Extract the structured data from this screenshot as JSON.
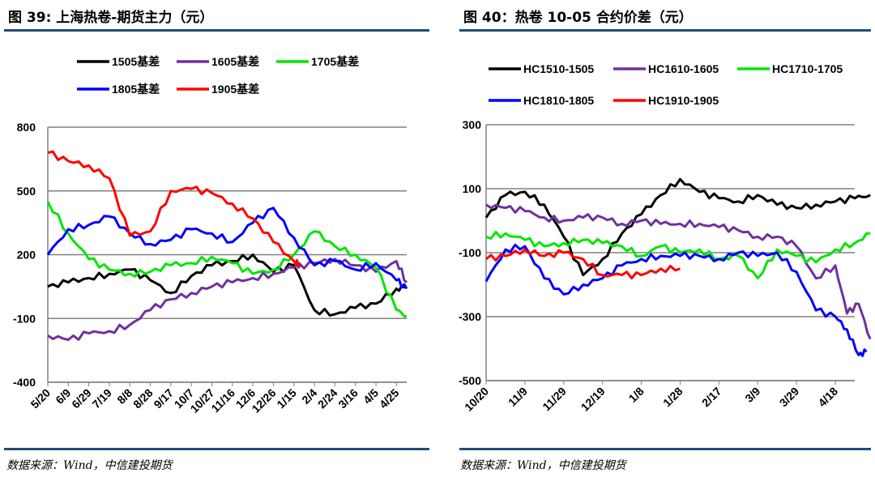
{
  "left": {
    "title": "图 39: 上海热卷-期货主力（元）",
    "source": "数据来源：Wind，中信建投期货"
  },
  "right": {
    "title": "图 40：热卷 10-05 合约价差（元）",
    "source": "数据来源：Wind，中信建投期货"
  },
  "colors": {
    "black": "#000000",
    "purple": "#7030a0",
    "green": "#00e600",
    "blue": "#0000ff",
    "red": "#ff0000",
    "rule": "#1f4e79"
  },
  "chart_data": [
    {
      "type": "line",
      "title": "",
      "xlabel": "",
      "ylabel": "",
      "ylim": [
        -400,
        800
      ],
      "yticks": [
        "800",
        "500",
        "200",
        "-100",
        "-400"
      ],
      "grid": true,
      "legend": "top",
      "categories": [
        "5/20",
        "6/9",
        "6/29",
        "7/19",
        "8/8",
        "8/28",
        "9/17",
        "10/7",
        "10/27",
        "11/16",
        "12/6",
        "12/26",
        "1/15",
        "2/4",
        "2/24",
        "3/16",
        "4/5",
        "4/25"
      ],
      "series": [
        {
          "name": "1505基差",
          "color": "#000000",
          "x": [
            0,
            1,
            2,
            3,
            4,
            5,
            6,
            7,
            8,
            9,
            10,
            11,
            12,
            13,
            14,
            15,
            16,
            17,
            17.5
          ],
          "values": [
            50,
            70,
            90,
            110,
            130,
            80,
            20,
            100,
            150,
            170,
            200,
            120,
            150,
            -60,
            -80,
            -50,
            -30,
            40,
            50
          ]
        },
        {
          "name": "1605基差",
          "color": "#7030a0",
          "x": [
            0,
            1,
            2,
            3,
            4,
            5,
            6,
            7,
            8,
            9,
            10,
            11,
            12,
            13,
            14,
            15,
            16,
            17,
            17.5
          ],
          "values": [
            -180,
            -200,
            -170,
            -160,
            -130,
            -60,
            -10,
            20,
            50,
            70,
            90,
            110,
            140,
            160,
            180,
            150,
            120,
            170,
            70
          ]
        },
        {
          "name": "1705基差",
          "color": "#00e600",
          "x": [
            0,
            1,
            2,
            3,
            4,
            5,
            6,
            7,
            8,
            9,
            10,
            11,
            12,
            13,
            14,
            15,
            16,
            17,
            17.5
          ],
          "values": [
            450,
            300,
            180,
            130,
            110,
            120,
            150,
            160,
            190,
            160,
            110,
            130,
            200,
            310,
            240,
            200,
            140,
            -60,
            -90
          ]
        },
        {
          "name": "1805基差",
          "color": "#0000ff",
          "x": [
            0,
            1,
            2,
            3,
            4,
            5,
            6,
            7,
            8,
            9,
            10,
            11,
            12,
            13,
            14,
            15,
            16,
            17,
            17.5
          ],
          "values": [
            200,
            320,
            340,
            380,
            300,
            250,
            270,
            320,
            300,
            260,
            350,
            420,
            280,
            150,
            170,
            130,
            160,
            80,
            40
          ]
        },
        {
          "name": "1905基差",
          "color": "#ff0000",
          "x": [
            0,
            1,
            2,
            3,
            4,
            5,
            6,
            7,
            8,
            9,
            10,
            11,
            12,
            12.3
          ],
          "values": [
            680,
            640,
            620,
            560,
            290,
            310,
            500,
            510,
            490,
            440,
            370,
            260,
            170,
            150
          ]
        }
      ]
    },
    {
      "type": "line",
      "title": "",
      "xlabel": "",
      "ylabel": "",
      "ylim": [
        -500,
        300
      ],
      "yticks": [
        "300",
        "100",
        "-100",
        "-300",
        "-500"
      ],
      "grid": true,
      "legend": "top",
      "categories": [
        "10/20",
        "11/9",
        "11/29",
        "12/19",
        "1/8",
        "1/28",
        "2/17",
        "3/9",
        "3/29",
        "4/18"
      ],
      "series": [
        {
          "name": "HC1510-1505",
          "color": "#000000",
          "x": [
            0,
            0.5,
            1,
            1.5,
            2,
            2.5,
            3,
            3.5,
            4,
            4.5,
            5,
            5.5,
            6,
            6.5,
            7,
            7.5,
            8,
            8.5,
            9,
            9.5,
            9.9
          ],
          "values": [
            10,
            80,
            90,
            50,
            -50,
            -170,
            -120,
            -40,
            20,
            80,
            130,
            90,
            70,
            60,
            80,
            50,
            40,
            50,
            60,
            70,
            80
          ]
        },
        {
          "name": "HC1610-1605",
          "color": "#7030a0",
          "x": [
            0,
            0.5,
            1,
            1.5,
            2,
            2.5,
            3,
            3.5,
            4,
            4.5,
            5,
            5.5,
            6,
            6.5,
            7,
            7.5,
            8,
            8.5,
            9,
            9.3,
            9.6,
            9.9
          ],
          "values": [
            50,
            40,
            30,
            10,
            0,
            10,
            10,
            -10,
            0,
            -10,
            -10,
            -10,
            -20,
            -30,
            -50,
            -50,
            -80,
            -180,
            -140,
            -290,
            -260,
            -370
          ]
        },
        {
          "name": "HC1710-1705",
          "color": "#00e600",
          "x": [
            0,
            0.5,
            1,
            1.5,
            2,
            2.5,
            3,
            3.5,
            4,
            4.5,
            5,
            5.5,
            6,
            6.5,
            7,
            7.5,
            8,
            8.5,
            9,
            9.5,
            9.9
          ],
          "values": [
            -50,
            -40,
            -60,
            -80,
            -70,
            -60,
            -70,
            -80,
            -110,
            -80,
            -100,
            -90,
            -120,
            -110,
            -180,
            -90,
            -110,
            -130,
            -90,
            -70,
            -40
          ]
        },
        {
          "name": "HC1810-1805",
          "color": "#0000ff",
          "x": [
            0,
            0.5,
            1,
            1.5,
            2,
            2.5,
            3,
            3.5,
            4,
            4.5,
            5,
            5.5,
            6,
            6.5,
            7,
            7.5,
            8,
            8.5,
            9,
            9.3,
            9.6,
            9.8
          ],
          "values": [
            -190,
            -90,
            -80,
            -180,
            -230,
            -200,
            -180,
            -140,
            -120,
            -110,
            -110,
            -110,
            -120,
            -100,
            -110,
            -100,
            -160,
            -280,
            -300,
            -340,
            -420,
            -410
          ]
        },
        {
          "name": "HC1910-1905",
          "color": "#ff0000",
          "x": [
            0,
            0.5,
            1,
            1.5,
            2,
            2.5,
            3,
            3.5,
            4,
            4.5,
            5
          ],
          "values": [
            -120,
            -110,
            -90,
            -110,
            -100,
            -120,
            -170,
            -170,
            -170,
            -150,
            -150
          ]
        }
      ]
    }
  ]
}
